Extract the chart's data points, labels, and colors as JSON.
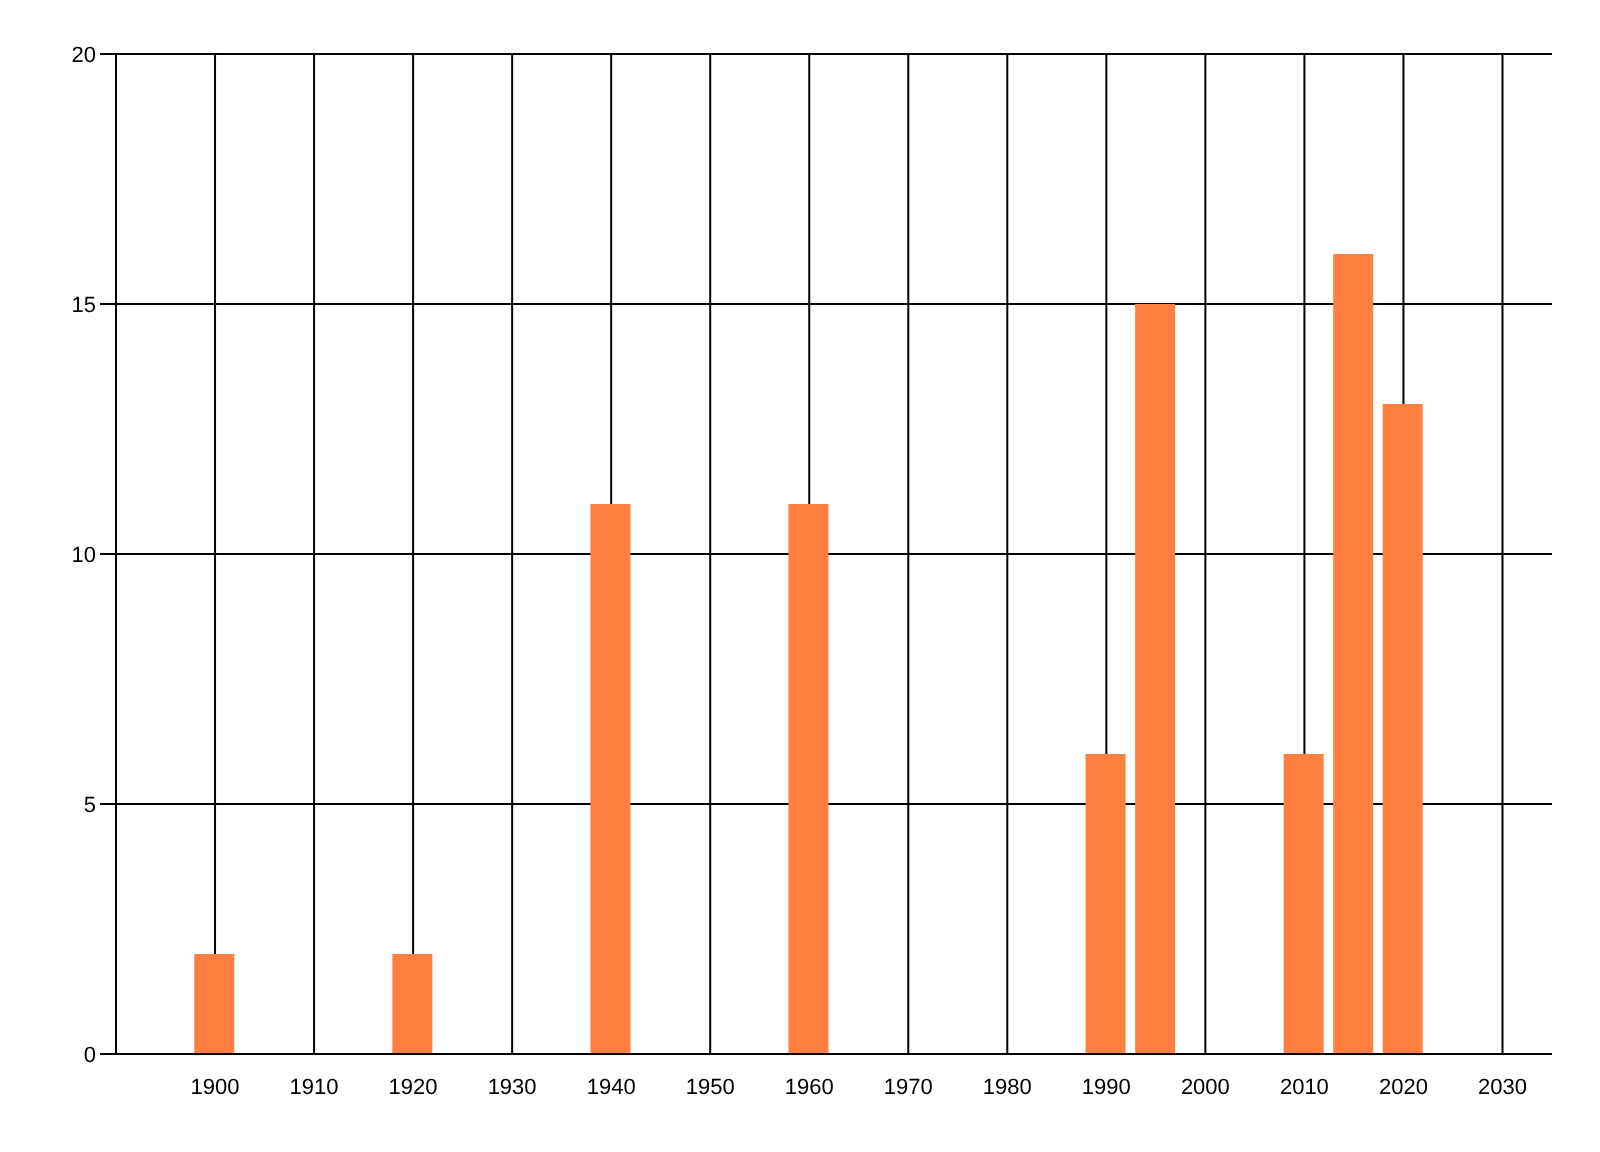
{
  "chart_data": {
    "type": "bar",
    "x": [
      1900,
      1920,
      1940,
      1960,
      1990,
      1995,
      2010,
      2015,
      2020
    ],
    "values": [
      2,
      2,
      11,
      11,
      6,
      15,
      6,
      16,
      13
    ],
    "color": "#ff7f40",
    "xlim": [
      1890,
      2035
    ],
    "xticks": [
      1900,
      1910,
      1920,
      1930,
      1940,
      1950,
      1960,
      1970,
      1980,
      1990,
      2000,
      2010,
      2020,
      2030
    ],
    "ylim": [
      0,
      20
    ],
    "yticks": [
      0,
      5,
      10,
      15,
      20
    ],
    "grid": true
  }
}
